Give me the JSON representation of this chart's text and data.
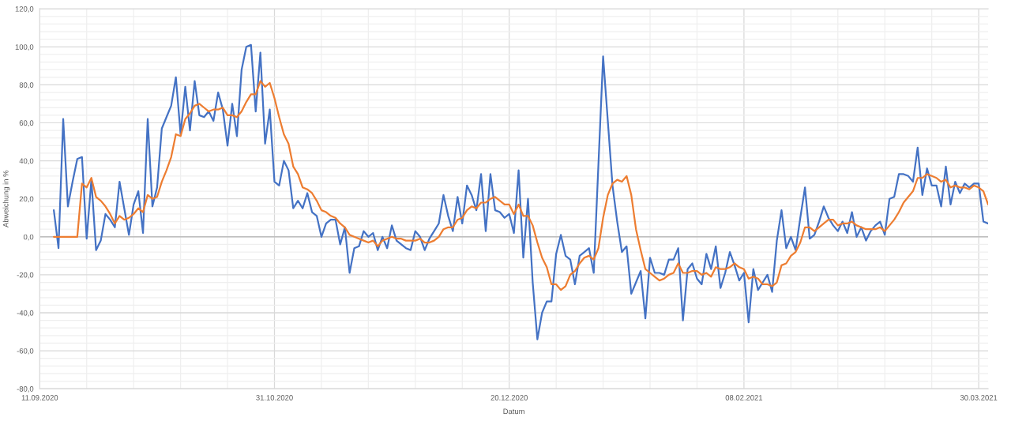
{
  "chart_data": {
    "type": "line",
    "xlabel": "Datum",
    "ylabel": "Abweichung in %",
    "x": [
      "2020-09-14",
      "2020-09-15",
      "2020-09-16",
      "2020-09-17",
      "2020-09-18",
      "2020-09-19",
      "2020-09-20",
      "2020-09-21",
      "2020-09-22",
      "2020-09-23",
      "2020-09-24",
      "2020-09-25",
      "2020-09-26",
      "2020-09-27",
      "2020-09-28",
      "2020-09-29",
      "2020-09-30",
      "2020-10-01",
      "2020-10-02",
      "2020-10-03",
      "2020-10-04",
      "2020-10-05",
      "2020-10-06",
      "2020-10-07",
      "2020-10-08",
      "2020-10-09",
      "2020-10-10",
      "2020-10-11",
      "2020-10-12",
      "2020-10-13",
      "2020-10-14",
      "2020-10-15",
      "2020-10-16",
      "2020-10-17",
      "2020-10-18",
      "2020-10-19",
      "2020-10-20",
      "2020-10-21",
      "2020-10-22",
      "2020-10-23",
      "2020-10-24",
      "2020-10-25",
      "2020-10-26",
      "2020-10-27",
      "2020-10-28",
      "2020-10-29",
      "2020-10-30",
      "2020-10-31",
      "2020-11-01",
      "2020-11-02",
      "2020-11-03",
      "2020-11-04",
      "2020-11-05",
      "2020-11-06",
      "2020-11-07",
      "2020-11-08",
      "2020-11-09",
      "2020-11-10",
      "2020-11-11",
      "2020-11-12",
      "2020-11-13",
      "2020-11-14",
      "2020-11-15",
      "2020-11-16",
      "2020-11-17",
      "2020-11-18",
      "2020-11-19",
      "2020-11-20",
      "2020-11-21",
      "2020-11-22",
      "2020-11-23",
      "2020-11-24",
      "2020-11-25",
      "2020-11-26",
      "2020-11-27",
      "2020-11-28",
      "2020-11-29",
      "2020-11-30",
      "2020-12-01",
      "2020-12-02",
      "2020-12-03",
      "2020-12-04",
      "2020-12-05",
      "2020-12-06",
      "2020-12-07",
      "2020-12-08",
      "2020-12-09",
      "2020-12-10",
      "2020-12-11",
      "2020-12-12",
      "2020-12-13",
      "2020-12-14",
      "2020-12-15",
      "2020-12-16",
      "2020-12-17",
      "2020-12-18",
      "2020-12-19",
      "2020-12-20",
      "2020-12-21",
      "2020-12-22",
      "2020-12-23",
      "2020-12-24",
      "2020-12-25",
      "2020-12-26",
      "2020-12-27",
      "2020-12-28",
      "2020-12-29",
      "2020-12-30",
      "2020-12-31",
      "2021-01-01",
      "2021-01-02",
      "2021-01-03",
      "2021-01-04",
      "2021-01-05",
      "2021-01-06",
      "2021-01-07",
      "2021-01-08",
      "2021-01-09",
      "2021-01-10",
      "2021-01-11",
      "2021-01-12",
      "2021-01-13",
      "2021-01-14",
      "2021-01-15",
      "2021-01-16",
      "2021-01-17",
      "2021-01-18",
      "2021-01-19",
      "2021-01-20",
      "2021-01-21",
      "2021-01-22",
      "2021-01-23",
      "2021-01-24",
      "2021-01-25",
      "2021-01-26",
      "2021-01-27",
      "2021-01-28",
      "2021-01-29",
      "2021-01-30",
      "2021-01-31",
      "2021-02-01",
      "2021-02-02",
      "2021-02-03",
      "2021-02-04",
      "2021-02-05",
      "2021-02-06",
      "2021-02-07",
      "2021-02-08",
      "2021-02-09",
      "2021-02-10",
      "2021-02-11",
      "2021-02-12",
      "2021-02-13",
      "2021-02-14",
      "2021-02-15",
      "2021-02-16",
      "2021-02-17",
      "2021-02-18",
      "2021-02-19",
      "2021-02-20",
      "2021-02-21",
      "2021-02-22",
      "2021-02-23",
      "2021-02-24",
      "2021-02-25",
      "2021-02-26",
      "2021-02-27",
      "2021-02-28",
      "2021-03-01",
      "2021-03-02",
      "2021-03-03",
      "2021-03-04",
      "2021-03-05",
      "2021-03-06",
      "2021-03-07",
      "2021-03-08",
      "2021-03-09",
      "2021-03-10",
      "2021-03-11",
      "2021-03-12",
      "2021-03-13",
      "2021-03-14",
      "2021-03-15",
      "2021-03-16",
      "2021-03-17",
      "2021-03-18",
      "2021-03-19",
      "2021-03-20",
      "2021-03-21",
      "2021-03-22",
      "2021-03-23",
      "2021-03-24",
      "2021-03-25",
      "2021-03-26",
      "2021-03-27",
      "2021-03-28",
      "2021-03-29",
      "2021-03-30",
      "2021-03-31",
      "2021-04-01"
    ],
    "series": [
      {
        "color": "#4472c4",
        "values": [
          14,
          -6,
          62,
          16,
          29,
          41,
          42,
          -1,
          30,
          -7,
          -2,
          12,
          9,
          5,
          29,
          15,
          1,
          17,
          24,
          2,
          62,
          16,
          26,
          57,
          63,
          69,
          84,
          54,
          79,
          56,
          82,
          64,
          63,
          66,
          61,
          76,
          67,
          48,
          70,
          53,
          88,
          100,
          101,
          66,
          97,
          49,
          67,
          29,
          27,
          40,
          35,
          15,
          19,
          15,
          23,
          13,
          11,
          0,
          7,
          9,
          9,
          -4,
          5,
          -19,
          -6,
          -5,
          3,
          0,
          2,
          -7,
          0,
          -6,
          6,
          -2,
          -4,
          -6,
          -7,
          3,
          0,
          -7,
          -1,
          3,
          7,
          22,
          11,
          3,
          21,
          7,
          27,
          22,
          14,
          33,
          3,
          33,
          14,
          13,
          10,
          12,
          2,
          35,
          -11,
          20,
          -24,
          -54,
          -40,
          -34,
          -34,
          -9,
          1,
          -10,
          -12,
          -25,
          -10,
          -8,
          -6,
          -19,
          38,
          95,
          61,
          27,
          8,
          -8,
          -5,
          -30,
          -24,
          -18,
          -43,
          -11,
          -19,
          -19,
          -20,
          -12,
          -12,
          -6,
          -44,
          -17,
          -14,
          -22,
          -25,
          -9,
          -17,
          -5,
          -27,
          -19,
          -8,
          -15,
          -23,
          -19,
          -45,
          -17,
          -28,
          -24,
          -20,
          -29,
          -2,
          14,
          -6,
          0,
          -7,
          10,
          26,
          -1,
          1,
          8,
          16,
          10,
          6,
          3,
          8,
          2,
          13,
          0,
          5,
          -2,
          3,
          6,
          8,
          1,
          20,
          21,
          33,
          33,
          32,
          29,
          47,
          22,
          36,
          27,
          27,
          16,
          37,
          17,
          29,
          23,
          28,
          26,
          28,
          28,
          8,
          7
        ]
      },
      {
        "color": "#ed7d31",
        "values": [
          0,
          0,
          0,
          0,
          0,
          0,
          28,
          26,
          31,
          21,
          19,
          16,
          12,
          7,
          11,
          9,
          10,
          12,
          15,
          13,
          22,
          20,
          21,
          29,
          35,
          42,
          54,
          53,
          62,
          65,
          69,
          70,
          68,
          66,
          67,
          67,
          68,
          64,
          64,
          63,
          66,
          71,
          75,
          75,
          82,
          79,
          81,
          73,
          63,
          54,
          49,
          37,
          33,
          26,
          25,
          23,
          19,
          14,
          13,
          11,
          10,
          7,
          5,
          1,
          0,
          -1,
          -2,
          -3,
          -2,
          -5,
          -2,
          -1,
          0,
          -1,
          -1,
          -2,
          -2,
          -2,
          -1,
          -3,
          -3,
          -2,
          0,
          4,
          5,
          5,
          9,
          10,
          14,
          16,
          15,
          18,
          18,
          20,
          21,
          19,
          17,
          17,
          12,
          17,
          11,
          11,
          6,
          -3,
          -11,
          -16,
          -25,
          -25,
          -28,
          -26,
          -20,
          -18,
          -14,
          -11,
          -10,
          -12,
          -6,
          10,
          22,
          28,
          30,
          29,
          32,
          22,
          4,
          -7,
          -17,
          -19,
          -21,
          -23,
          -22,
          -20,
          -19,
          -14,
          -19,
          -19,
          -18,
          -18,
          -20,
          -19,
          -21,
          -16,
          -17,
          -17,
          -16,
          -14,
          -16,
          -17,
          -22,
          -21,
          -22,
          -25,
          -25,
          -26,
          -24,
          -15,
          -14,
          -10,
          -8,
          -3,
          5,
          5,
          3,
          5,
          7,
          9,
          9,
          6,
          7,
          7,
          8,
          6,
          5,
          4,
          4,
          4,
          5,
          3,
          6,
          9,
          13,
          18,
          21,
          24,
          31,
          31,
          33,
          32,
          31,
          29,
          30,
          26,
          27,
          26,
          26,
          25,
          27,
          26,
          24,
          17
        ]
      }
    ],
    "xlim": [
      "2020-09-11",
      "2021-04-01"
    ],
    "xticks": [
      {
        "value": "2020-09-11",
        "label": "11.09.2020"
      },
      {
        "value": "2020-09-21",
        "label": null
      },
      {
        "value": "2020-10-01",
        "label": null
      },
      {
        "value": "2020-10-11",
        "label": null
      },
      {
        "value": "2020-10-21",
        "label": null
      },
      {
        "value": "2020-10-31",
        "label": "31.10.2020"
      },
      {
        "value": "2020-11-10",
        "label": null
      },
      {
        "value": "2020-11-20",
        "label": null
      },
      {
        "value": "2020-11-30",
        "label": null
      },
      {
        "value": "2020-12-10",
        "label": null
      },
      {
        "value": "2020-12-20",
        "label": "20.12.2020"
      },
      {
        "value": "2020-12-30",
        "label": null
      },
      {
        "value": "2021-01-09",
        "label": null
      },
      {
        "value": "2021-01-19",
        "label": null
      },
      {
        "value": "2021-01-29",
        "label": null
      },
      {
        "value": "2021-02-08",
        "label": "08.02.2021"
      },
      {
        "value": "2021-02-18",
        "label": null
      },
      {
        "value": "2021-02-28",
        "label": null
      },
      {
        "value": "2021-03-10",
        "label": null
      },
      {
        "value": "2021-03-20",
        "label": null
      },
      {
        "value": "2021-03-30",
        "label": "30.03.2021"
      }
    ],
    "ylim": [
      -80,
      120
    ],
    "yticks": [
      {
        "value": -80,
        "label": "-80,0"
      },
      {
        "value": -76,
        "label": null
      },
      {
        "value": -72,
        "label": null
      },
      {
        "value": -68,
        "label": null
      },
      {
        "value": -64,
        "label": null
      },
      {
        "value": -60,
        "label": "-60,0"
      },
      {
        "value": -56,
        "label": null
      },
      {
        "value": -52,
        "label": null
      },
      {
        "value": -48,
        "label": null
      },
      {
        "value": -44,
        "label": null
      },
      {
        "value": -40,
        "label": "-40,0"
      },
      {
        "value": -36,
        "label": null
      },
      {
        "value": -32,
        "label": null
      },
      {
        "value": -28,
        "label": null
      },
      {
        "value": -24,
        "label": null
      },
      {
        "value": -20,
        "label": "-20,0"
      },
      {
        "value": -16,
        "label": null
      },
      {
        "value": -12,
        "label": null
      },
      {
        "value": -8,
        "label": null
      },
      {
        "value": -4,
        "label": null
      },
      {
        "value": 0,
        "label": "0,0"
      },
      {
        "value": 4,
        "label": null
      },
      {
        "value": 8,
        "label": null
      },
      {
        "value": 12,
        "label": null
      },
      {
        "value": 16,
        "label": null
      },
      {
        "value": 20,
        "label": "20,0"
      },
      {
        "value": 24,
        "label": null
      },
      {
        "value": 28,
        "label": null
      },
      {
        "value": 32,
        "label": null
      },
      {
        "value": 36,
        "label": null
      },
      {
        "value": 40,
        "label": "40,0"
      },
      {
        "value": 44,
        "label": null
      },
      {
        "value": 48,
        "label": null
      },
      {
        "value": 52,
        "label": null
      },
      {
        "value": 56,
        "label": null
      },
      {
        "value": 60,
        "label": "60,0"
      },
      {
        "value": 64,
        "label": null
      },
      {
        "value": 68,
        "label": null
      },
      {
        "value": 72,
        "label": null
      },
      {
        "value": 76,
        "label": null
      },
      {
        "value": 80,
        "label": "80,0"
      },
      {
        "value": 84,
        "label": null
      },
      {
        "value": 88,
        "label": null
      },
      {
        "value": 92,
        "label": null
      },
      {
        "value": 96,
        "label": null
      },
      {
        "value": 100,
        "label": "100,0"
      },
      {
        "value": 104,
        "label": null
      },
      {
        "value": 108,
        "label": null
      },
      {
        "value": 112,
        "label": null
      },
      {
        "value": 116,
        "label": null
      },
      {
        "value": 120,
        "label": "120,0"
      }
    ],
    "grid": true,
    "ref_lines": [
      {
        "axis": "y",
        "value": 0,
        "color": "#bfbfbf"
      }
    ]
  }
}
